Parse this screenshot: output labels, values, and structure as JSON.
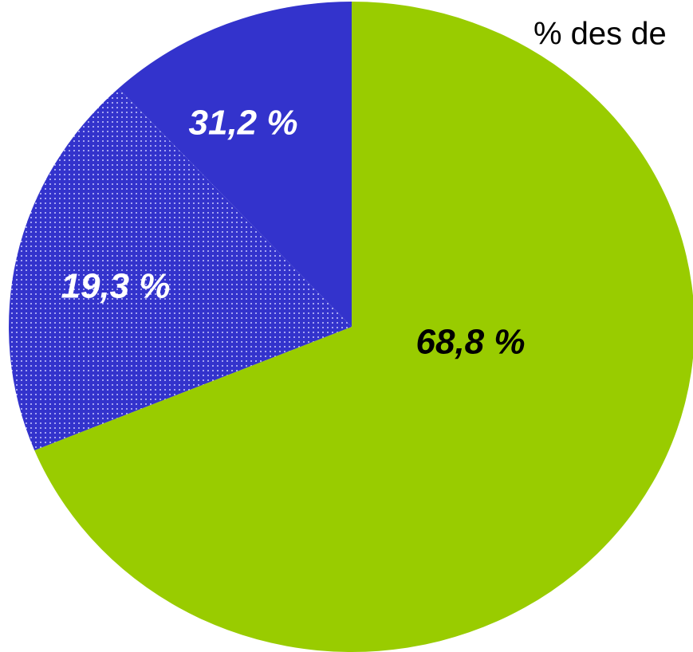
{
  "chart_data": {
    "type": "pie",
    "title": "% des de",
    "categories": [
      null,
      null,
      null
    ],
    "values": [
      68.8,
      19.3,
      11.9
    ],
    "value_labels": [
      "68,8 %",
      "19,3 %",
      null
    ],
    "colors": [
      "#99cc00",
      "#3333cc",
      "#3333cc"
    ],
    "patterns": [
      null,
      "dots",
      null
    ],
    "annotations": [
      {
        "text": "31,2 %"
      }
    ]
  }
}
